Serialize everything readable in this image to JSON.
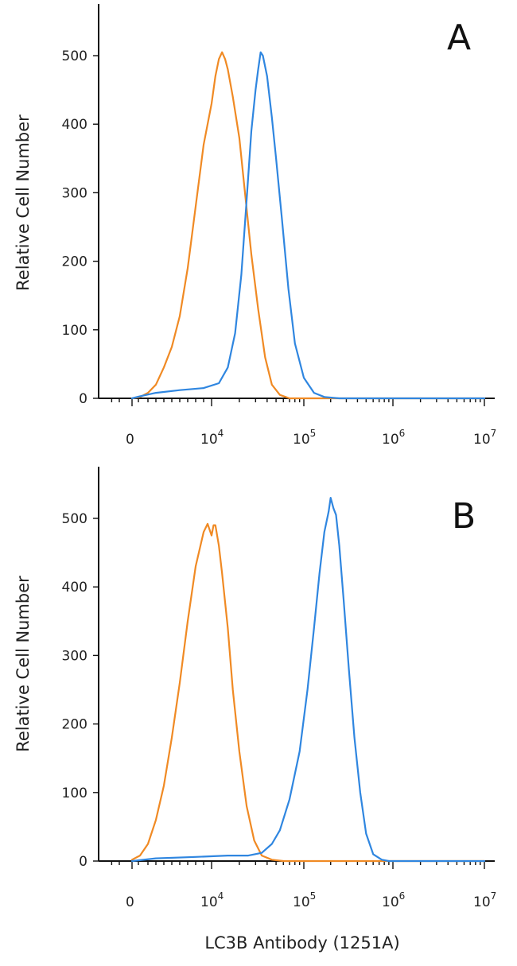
{
  "chart_data": [
    {
      "type": "line",
      "panel": "A",
      "ylabel": "Relative Cell Number",
      "xlabel": "",
      "x_scale": "biexponential",
      "ylim": [
        0,
        550
      ],
      "y_ticks": [
        0,
        100,
        200,
        300,
        400,
        500
      ],
      "x_ticks": [
        "0",
        "10^4",
        "10^5",
        "10^6",
        "10^7"
      ],
      "series": [
        {
          "color": "#f08a24",
          "points": [
            [
              0,
              0
            ],
            [
              1000,
              2
            ],
            [
              2000,
              8
            ],
            [
              3000,
              20
            ],
            [
              4000,
              45
            ],
            [
              5000,
              75
            ],
            [
              6000,
              120
            ],
            [
              7000,
              190
            ],
            [
              8000,
              280
            ],
            [
              9000,
              370
            ],
            [
              10000,
              430
            ],
            [
              11000,
              470
            ],
            [
              12000,
              495
            ],
            [
              13000,
              505
            ],
            [
              14000,
              495
            ],
            [
              15000,
              480
            ],
            [
              17000,
              440
            ],
            [
              20000,
              380
            ],
            [
              23000,
              300
            ],
            [
              27000,
              210
            ],
            [
              32000,
              130
            ],
            [
              38000,
              60
            ],
            [
              45000,
              20
            ],
            [
              55000,
              5
            ],
            [
              70000,
              0
            ],
            [
              10000000,
              0
            ]
          ]
        },
        {
          "color": "#2f86e0",
          "points": [
            [
              0,
              0
            ],
            [
              1000,
              3
            ],
            [
              3000,
              8
            ],
            [
              6000,
              12
            ],
            [
              9000,
              15
            ],
            [
              12000,
              22
            ],
            [
              15000,
              45
            ],
            [
              18000,
              95
            ],
            [
              21000,
              180
            ],
            [
              24000,
              290
            ],
            [
              27000,
              390
            ],
            [
              30000,
              450
            ],
            [
              32000,
              480
            ],
            [
              34000,
              505
            ],
            [
              36000,
              500
            ],
            [
              40000,
              470
            ],
            [
              45000,
              410
            ],
            [
              50000,
              350
            ],
            [
              58000,
              260
            ],
            [
              68000,
              160
            ],
            [
              80000,
              80
            ],
            [
              100000,
              30
            ],
            [
              130000,
              8
            ],
            [
              170000,
              2
            ],
            [
              250000,
              0
            ],
            [
              10000000,
              0
            ]
          ]
        }
      ]
    },
    {
      "type": "line",
      "panel": "B",
      "ylabel": "Relative Cell Number",
      "xlabel": "LC3B Antibody (1251A)",
      "x_scale": "biexponential",
      "ylim": [
        0,
        550
      ],
      "y_ticks": [
        0,
        100,
        200,
        300,
        400,
        500
      ],
      "x_ticks": [
        "0",
        "10^4",
        "10^5",
        "10^6",
        "10^7"
      ],
      "series": [
        {
          "color": "#f08a24",
          "points": [
            [
              0,
              2
            ],
            [
              1000,
              8
            ],
            [
              2000,
              25
            ],
            [
              3000,
              60
            ],
            [
              4000,
              110
            ],
            [
              5000,
              180
            ],
            [
              6000,
              260
            ],
            [
              7000,
              350
            ],
            [
              8000,
              430
            ],
            [
              9000,
              480
            ],
            [
              9500,
              492
            ],
            [
              10000,
              475
            ],
            [
              10500,
              490
            ],
            [
              11000,
              490
            ],
            [
              12000,
              460
            ],
            [
              13000,
              420
            ],
            [
              15000,
              340
            ],
            [
              17000,
              250
            ],
            [
              20000,
              160
            ],
            [
              24000,
              80
            ],
            [
              29000,
              30
            ],
            [
              35000,
              8
            ],
            [
              45000,
              2
            ],
            [
              60000,
              0
            ],
            [
              10000000,
              0
            ]
          ]
        },
        {
          "color": "#2f86e0",
          "points": [
            [
              0,
              0
            ],
            [
              3000,
              4
            ],
            [
              8000,
              6
            ],
            [
              15000,
              8
            ],
            [
              25000,
              8
            ],
            [
              35000,
              12
            ],
            [
              45000,
              25
            ],
            [
              55000,
              45
            ],
            [
              70000,
              90
            ],
            [
              90000,
              160
            ],
            [
              110000,
              250
            ],
            [
              130000,
              340
            ],
            [
              150000,
              420
            ],
            [
              170000,
              480
            ],
            [
              190000,
              510
            ],
            [
              200000,
              530
            ],
            [
              215000,
              515
            ],
            [
              230000,
              505
            ],
            [
              250000,
              460
            ],
            [
              280000,
              380
            ],
            [
              320000,
              280
            ],
            [
              370000,
              180
            ],
            [
              430000,
              100
            ],
            [
              500000,
              40
            ],
            [
              600000,
              10
            ],
            [
              750000,
              2
            ],
            [
              900000,
              0
            ],
            [
              10000000,
              0
            ]
          ]
        }
      ]
    }
  ]
}
